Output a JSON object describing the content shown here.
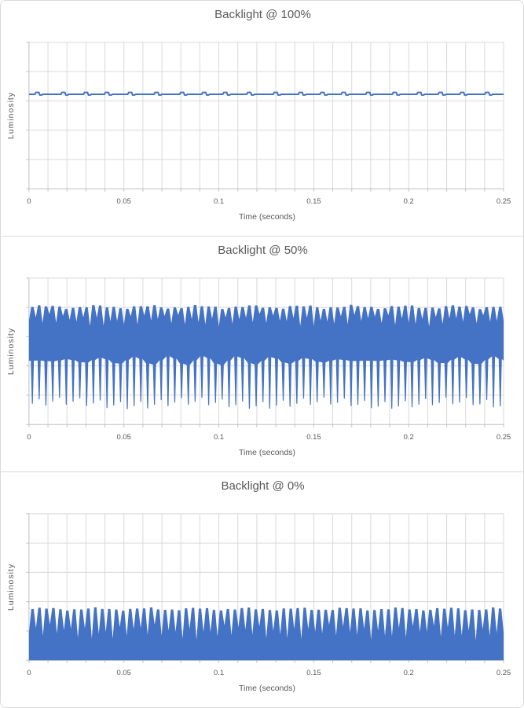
{
  "page": {
    "background": "#ffffff",
    "panel_border_color": "#d9d9d9"
  },
  "colors": {
    "series_blue": "#4472C4",
    "gridline": "#d9d9d9",
    "axis_line": "#bfbfbf",
    "text": "#595959"
  },
  "chart_data": [
    {
      "type": "line",
      "title": "Backlight @ 100%",
      "xlabel": "Time (seconds)",
      "ylabel": "Luminosity",
      "legend": "none",
      "grid": true,
      "x": {
        "min": 0,
        "max": 0.25,
        "label_step": 0.05,
        "minor_step": 0.01,
        "tick_labels": [
          "0",
          "0.05",
          "0.1",
          "0.15",
          "0.2",
          "0.25"
        ]
      },
      "y": {
        "tick_labels": [],
        "gridline_count": 6
      },
      "series_color": "#4472C4",
      "waveform": {
        "kind": "flat_with_blips",
        "description": "near-constant luminosity at ~0.65 of full scale with a tiny ripple blip every ~0.0125 s (~80 Hz)",
        "level": 0.645,
        "blip_count": 20,
        "blip_rise": 0.013,
        "blip_dip": 0.005,
        "line_width": 2
      }
    },
    {
      "type": "line",
      "title": "Backlight @ 50%",
      "xlabel": "Time (seconds)",
      "ylabel": "Luminosity",
      "legend": "none",
      "grid": true,
      "x": {
        "min": 0,
        "max": 0.25,
        "label_step": 0.05,
        "minor_step": 0.01,
        "tick_labels": [
          "0",
          "0.05",
          "0.1",
          "0.15",
          "0.2",
          "0.25"
        ]
      },
      "y": {
        "tick_labels": [],
        "gridline_count": 6
      },
      "series_color": "#4472C4",
      "waveform": {
        "kind": "pwm_band",
        "description": "full-amplitude PWM flicker ~280 Hz, luminosity oscillating between ~0.10 and ~0.80 of scale; appears as solid band with peak caps above and needle dips below",
        "cycles": 70,
        "top_peak": 0.803,
        "top_peak_jitter": 0.015,
        "notch_min": 0.665,
        "notch_max": 0.755,
        "bottom_base": 0.436,
        "wedge_jitter": 0.032,
        "tip_min": 0.1,
        "tip_max": 0.185
      }
    },
    {
      "type": "line",
      "title": "Backlight @ 0%",
      "xlabel": "Time (seconds)",
      "ylabel": "Luminosity",
      "legend": "none",
      "grid": true,
      "x": {
        "min": 0,
        "max": 0.25,
        "label_step": 0.05,
        "minor_step": 0.01,
        "tick_labels": [
          "0",
          "0.05",
          "0.1",
          "0.15",
          "0.2",
          "0.25"
        ]
      },
      "y": {
        "tick_labels": [],
        "gridline_count": 6
      },
      "series_color": "#4472C4",
      "waveform": {
        "kind": "pwm_base",
        "description": "low-level PWM flicker ~272 Hz, luminosity oscillating between 0 and ~0.35 of scale, riding on the x-axis",
        "cycles": 68,
        "peak": 0.35,
        "peak_jitter": 0.012,
        "notch_min": 0.135,
        "notch_max": 0.245,
        "base": 0.0
      }
    }
  ]
}
